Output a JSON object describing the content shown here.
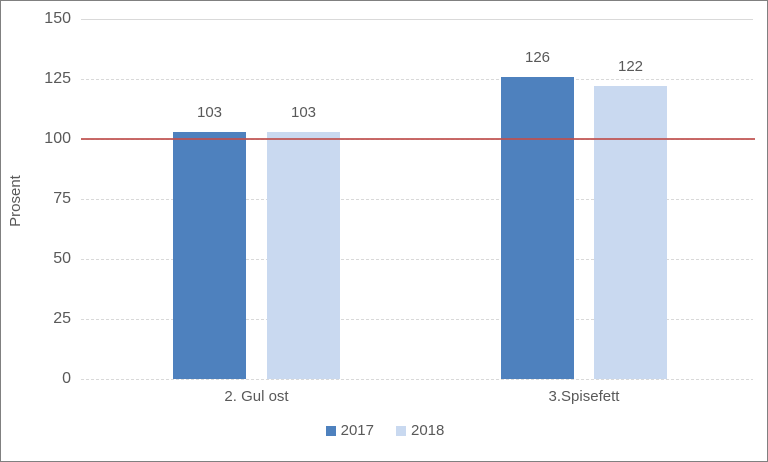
{
  "chart_data": {
    "type": "bar",
    "categories": [
      "2. Gul ost",
      "3.Spisefett"
    ],
    "series": [
      {
        "name": "2017",
        "color": "#4E81BE",
        "values": [
          103,
          126
        ]
      },
      {
        "name": "2018",
        "color": "#C9D9F0",
        "values": [
          103,
          122
        ]
      }
    ],
    "title": "",
    "xlabel": "",
    "ylabel": "Prosent",
    "ylim": [
      0,
      150
    ],
    "yticks": [
      0,
      25,
      50,
      75,
      100,
      125,
      150
    ],
    "grid": "horizontal-dashed",
    "value_labels": true,
    "legend_position": "bottom-center",
    "reference_line": {
      "value": 100,
      "color": "#C0504D"
    }
  },
  "colors": {
    "text": "#595959",
    "gridline": "#D9D9D9",
    "frame_border": "#808080",
    "background": "#FFFFFF"
  }
}
